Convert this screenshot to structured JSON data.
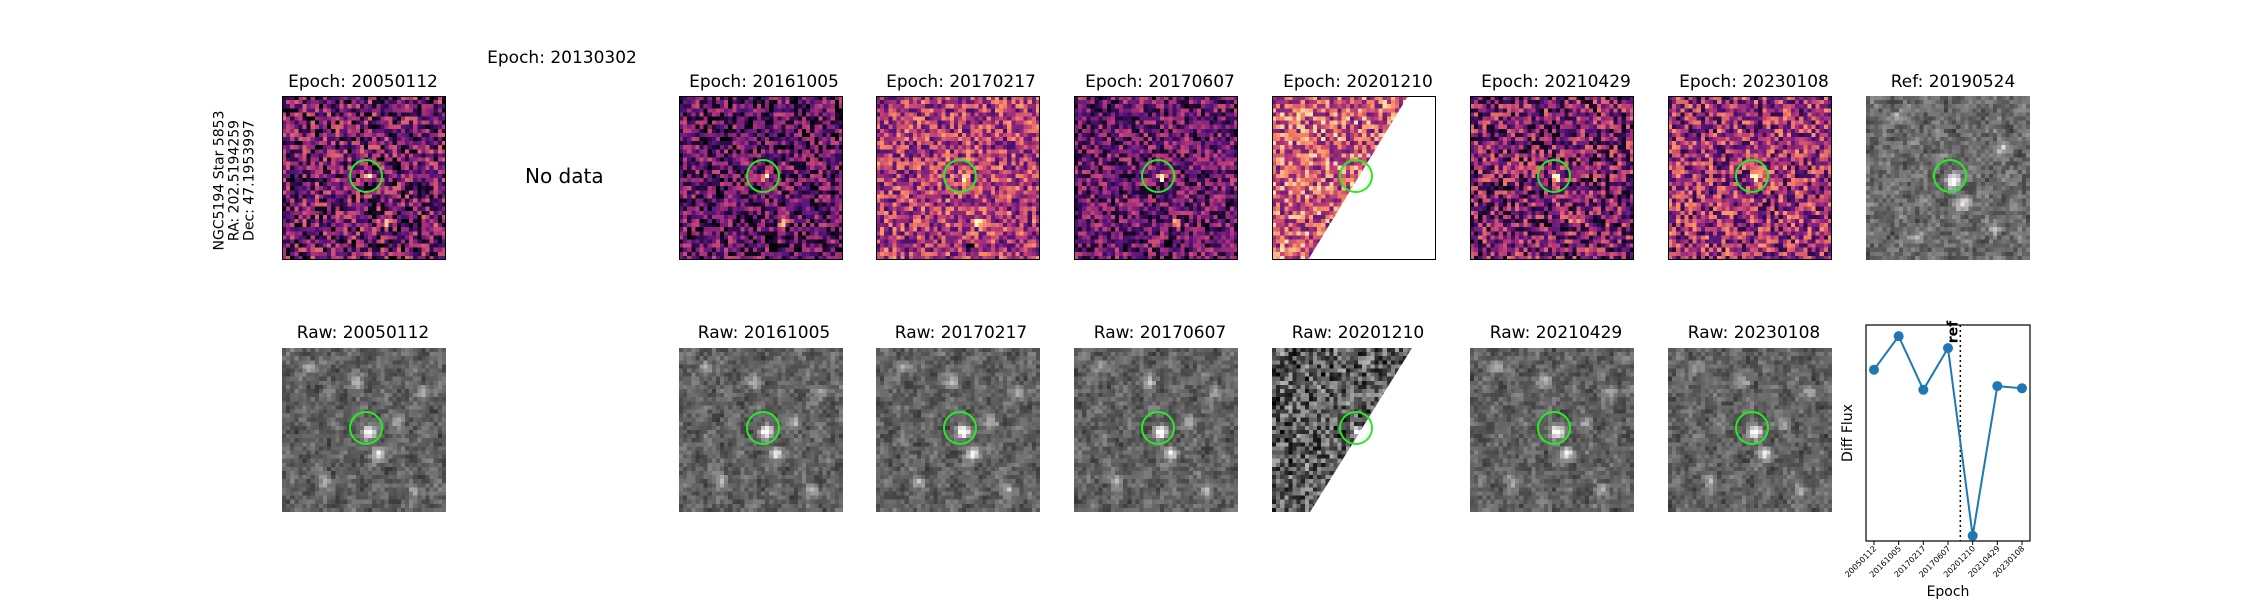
{
  "star_label": {
    "name": "NGC5194 Star 5853",
    "ra": "RA: 202.5194259",
    "dec": "Dec: 47.1953997"
  },
  "row1_titles": [
    "Epoch: 20050112",
    "Epoch: 20130302",
    "Epoch: 20161005",
    "Epoch: 20170217",
    "Epoch: 20170607",
    "Epoch: 20201210",
    "Epoch: 20210429",
    "Epoch: 20230108",
    "Ref: 20190524"
  ],
  "no_data_text": "No data",
  "row2_titles": [
    "Raw: 20050112",
    "Raw: 20161005",
    "Raw: 20170217",
    "Raw: 20170607",
    "Raw: 20201210",
    "Raw: 20210429",
    "Raw: 20230108"
  ],
  "colors": {
    "marker_circle": "#22ee22",
    "line": "#1f77b4",
    "diff_palette": "magma",
    "raw_palette": "gray"
  },
  "chart_data": {
    "type": "line",
    "xlabel": "Epoch",
    "ylabel": "Diff Flux",
    "x": [
      "20050112",
      "20161005",
      "20170217",
      "20170607",
      "20201210",
      "20210429",
      "20230108"
    ],
    "values": [
      0.55,
      1.0,
      0.28,
      0.84,
      -1.68,
      0.33,
      0.3
    ],
    "ylim": [
      -1.75,
      1.15
    ],
    "reference_line": {
      "label": "ref",
      "position_between": [
        "20170607",
        "20201210"
      ],
      "style": "dotted"
    }
  }
}
